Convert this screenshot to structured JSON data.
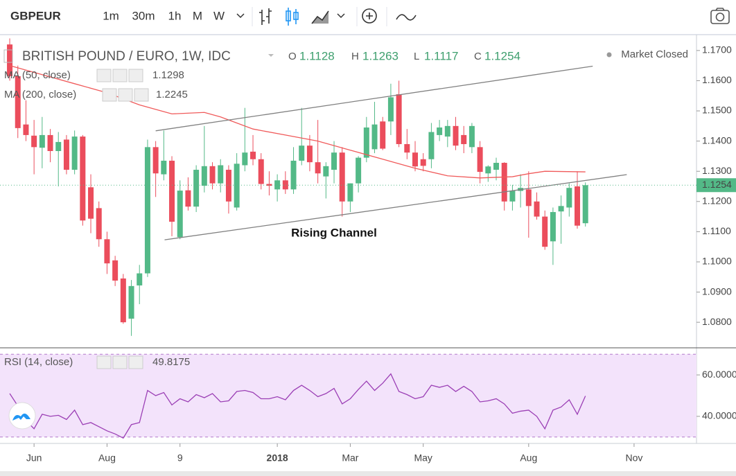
{
  "toolbar": {
    "symbol": "GBPEUR",
    "intervals": [
      "1m",
      "30m",
      "1h",
      "M",
      "W"
    ],
    "active_interval": "W"
  },
  "chart_data": {
    "type": "candlestick",
    "title": "BRITISH POUND / EURO, 1W, IDC",
    "status": "Market Closed",
    "ohlc_keys": [
      "O",
      "H",
      "L",
      "C"
    ],
    "open": [
      1.172,
      1.1615,
      1.1455,
      1.1418,
      1.1378,
      1.142,
      1.1367,
      1.1405,
      1.1305,
      1.1415,
      1.1247,
      1.1178,
      1.1075,
      1.1005,
      1.0945,
      1.0812,
      1.0922,
      1.0962,
      1.138,
      1.129,
      1.1335,
      1.1082,
      1.1237,
      1.1183,
      1.1252,
      1.1317,
      1.126,
      1.1305,
      1.118,
      1.132,
      1.1365,
      1.134,
      1.1258,
      1.124,
      1.127,
      1.124,
      1.1335,
      1.1385,
      1.133,
      1.1283,
      1.1305,
      1.1362,
      1.12,
      1.126,
      1.1345,
      1.1373,
      1.1465,
      1.1465,
      1.1555,
      1.139,
      1.1362,
      1.134,
      1.134,
      1.142,
      1.1415,
      1.145,
      1.142,
      1.138,
      1.138,
      1.1293,
      1.1305,
      1.1328,
      1.12,
      1.1235,
      1.124,
      1.12,
      1.115,
      1.1068,
      1.1167,
      1.118,
      1.125,
      1.1128
    ],
    "high": [
      1.174,
      1.165,
      1.1535,
      1.147,
      1.148,
      1.144,
      1.143,
      1.142,
      1.1435,
      1.142,
      1.129,
      1.12,
      1.11,
      1.102,
      1.096,
      1.094,
      1.099,
      1.1405,
      1.14,
      1.1435,
      1.135,
      1.127,
      1.128,
      1.132,
      1.145,
      1.133,
      1.134,
      1.132,
      1.136,
      1.151,
      1.142,
      1.136,
      1.13,
      1.129,
      1.13,
      1.138,
      1.151,
      1.142,
      1.147,
      1.133,
      1.14,
      1.138,
      1.126,
      1.135,
      1.148,
      1.153,
      1.148,
      1.159,
      1.16,
      1.144,
      1.14,
      1.136,
      1.146,
      1.147,
      1.147,
      1.148,
      1.145,
      1.146,
      1.14,
      1.132,
      1.1345,
      1.133,
      1.1255,
      1.129,
      1.13,
      1.123,
      1.117,
      1.118,
      1.122,
      1.126,
      1.13,
      1.1263
    ],
    "low": [
      1.16,
      1.141,
      1.14,
      1.129,
      1.131,
      1.133,
      1.125,
      1.129,
      1.129,
      1.112,
      1.1095,
      1.105,
      1.096,
      1.092,
      1.0795,
      1.0755,
      1.086,
      1.095,
      1.1215,
      1.127,
      1.1085,
      1.1075,
      1.117,
      1.1165,
      1.123,
      1.124,
      1.123,
      1.116,
      1.117,
      1.13,
      1.132,
      1.124,
      1.122,
      1.12,
      1.1225,
      1.1225,
      1.132,
      1.13,
      1.126,
      1.121,
      1.126,
      1.115,
      1.1165,
      1.123,
      1.133,
      1.136,
      1.137,
      1.142,
      1.138,
      1.134,
      1.13,
      1.13,
      1.131,
      1.14,
      1.138,
      1.137,
      1.136,
      1.136,
      1.126,
      1.1265,
      1.127,
      1.117,
      1.117,
      1.118,
      1.108,
      1.114,
      1.104,
      1.099,
      1.106,
      1.115,
      1.111,
      1.1117
    ],
    "close": [
      1.1615,
      1.1443,
      1.142,
      1.138,
      1.142,
      1.1367,
      1.1397,
      1.1305,
      1.1415,
      1.1137,
      1.1143,
      1.1075,
      1.0995,
      1.0938,
      1.08,
      1.092,
      1.0962,
      1.138,
      1.1293,
      1.1335,
      1.1133,
      1.1236,
      1.1183,
      1.1305,
      1.1317,
      1.126,
      1.132,
      1.12,
      1.1325,
      1.1362,
      1.134,
      1.1258,
      1.1252,
      1.127,
      1.124,
      1.1335,
      1.1385,
      1.133,
      1.1293,
      1.1317,
      1.1362,
      1.12,
      1.126,
      1.1345,
      1.1445,
      1.1455,
      1.1375,
      1.1545,
      1.139,
      1.1362,
      1.1316,
      1.1318,
      1.143,
      1.1445,
      1.145,
      1.1385,
      1.139,
      1.145,
      1.1298,
      1.1316,
      1.1328,
      1.12,
      1.1235,
      1.1245,
      1.1185,
      1.115,
      1.105,
      1.1165,
      1.1185,
      1.1245,
      1.112,
      1.1254
    ],
    "up_color": "#53b987",
    "down_color": "#eb4d5c",
    "ylim": [
      1.072,
      1.1741
    ],
    "yticks": [
      {
        "value": 1.17,
        "label": "1.1700"
      },
      {
        "value": 1.16,
        "label": "1.1600"
      },
      {
        "value": 1.15,
        "label": "1.1500"
      },
      {
        "value": 1.14,
        "label": "1.1400"
      },
      {
        "value": 1.13,
        "label": "1.1300"
      },
      {
        "value": 1.12,
        "label": "1.1200"
      },
      {
        "value": 1.11,
        "label": "1.1100"
      },
      {
        "value": 1.1,
        "label": "1.1000"
      },
      {
        "value": 1.09,
        "label": "1.0900"
      },
      {
        "value": 1.08,
        "label": "1.0800"
      }
    ],
    "xlim": [
      -1.2,
      84.7
    ],
    "xticks": [
      {
        "value": 3,
        "label": "Jun"
      },
      {
        "value": 12,
        "label": "Aug"
      },
      {
        "value": 21,
        "label": "9"
      },
      {
        "value": 33,
        "label": "2018"
      },
      {
        "value": 42,
        "label": "Mar"
      },
      {
        "value": 51,
        "label": "May"
      },
      {
        "value": 64,
        "label": "Aug"
      },
      {
        "value": 77,
        "label": "Nov"
      }
    ],
    "indicators": [
      {
        "name": "MA (50, close)",
        "color": "#f05a5a",
        "x": [
          0,
          4,
          8,
          12,
          16,
          20,
          24,
          26,
          30,
          34,
          38,
          42,
          46,
          50,
          54,
          58,
          62,
          64,
          66,
          71
        ],
        "values": [
          1.165,
          1.162,
          1.159,
          1.156,
          1.152,
          1.149,
          1.1495,
          1.148,
          1.144,
          1.142,
          1.14,
          1.137,
          1.134,
          1.131,
          1.1285,
          1.1278,
          1.1282,
          1.1292,
          1.13,
          1.1298
        ]
      },
      {
        "name": "MA (200, close)",
        "color": "#2e7d32",
        "value": 1.2245
      }
    ],
    "trend_lines": [
      {
        "color": "#808080",
        "x": [
          18.0,
          71.9
        ],
        "values": [
          1.1434,
          1.1648
        ]
      },
      {
        "color": "#808080",
        "x": [
          19.1,
          76.1
        ],
        "values": [
          1.1073,
          1.1289
        ]
      }
    ],
    "annotation": "Rising Channel",
    "rsi": {
      "name": "RSI (14, close)",
      "color": "#9b3fb5",
      "values": [
        51,
        45,
        38,
        34,
        41,
        40,
        40.5,
        38.5,
        43,
        36,
        37,
        35,
        33,
        31.5,
        29.5,
        36,
        37,
        52.5,
        50,
        51.5,
        45.5,
        48.5,
        47,
        50.5,
        49,
        51,
        47,
        47.5,
        52,
        52.5,
        51.5,
        48.5,
        48.5,
        49.5,
        48,
        52.5,
        55,
        52.5,
        49.5,
        51,
        53.5,
        46,
        48.5,
        53,
        57,
        52.5,
        56,
        60.5,
        52,
        50.5,
        48.5,
        49.5,
        55,
        54,
        55,
        52,
        54.5,
        52,
        47,
        47.5,
        48.5,
        46,
        41.5,
        42.5,
        43,
        40,
        34,
        43,
        44.5,
        48,
        41,
        49.8175
      ],
      "ylim": [
        29.6,
        70.4
      ],
      "yticks": [
        {
          "value": 60,
          "label": "60.0000"
        },
        {
          "value": 40,
          "label": "40.0000"
        }
      ],
      "band": [
        30,
        70
      ]
    }
  }
}
